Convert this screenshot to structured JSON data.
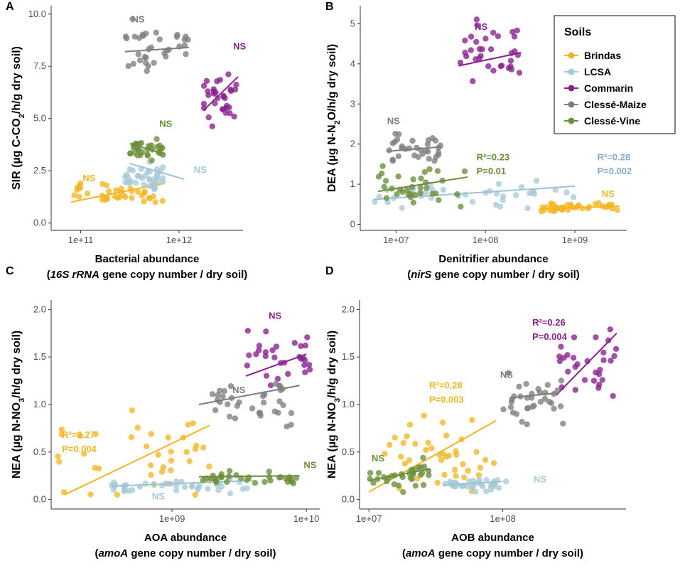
{
  "colors": {
    "Brindas": "#f3b622",
    "LCSA": "#a6cbd8",
    "Commarin": "#8b1f8f",
    "Clessé-Maize": "#7d7d7d",
    "Clessé-Vine": "#6b8e3a",
    "annot_LCSA": "#88aec6"
  },
  "legend": {
    "title": "Soils",
    "items": [
      "Brindas",
      "LCSA",
      "Commarin",
      "Clessé-Maize",
      "Clessé-Vine"
    ]
  },
  "chart_data": [
    {
      "panel": "A",
      "type": "scatter",
      "ylabel": "SIR (µg C-CO₂/h/g dry soil)",
      "xlabel": "Bacterial abundance",
      "xlabel_sub": [
        "(",
        "16S rRNA",
        " gene copy number / dry soil)"
      ],
      "x_scale": "log10",
      "xlim": [
        10.7,
        12.65
      ],
      "ylim": [
        -0.35,
        10.4
      ],
      "xticks": [
        {
          "v": 11,
          "label": "1e+11"
        },
        {
          "v": 12,
          "label": "1e+12"
        }
      ],
      "yticks": [
        {
          "v": 0,
          "label": "0.0"
        },
        {
          "v": 2.5,
          "label": "2.5"
        },
        {
          "v": 5,
          "label": "5.0"
        },
        {
          "v": 7.5,
          "label": "7.5"
        },
        {
          "v": 10,
          "label": "10.0"
        }
      ],
      "series": [
        {
          "name": "Brindas",
          "x0": 10.9,
          "x1": 11.85,
          "y0": 1.0,
          "y1": 1.9,
          "yc": 1.4,
          "ys": 0.45,
          "n": 40,
          "fit": [
            [
              10.9,
              1.0
            ],
            [
              11.85,
              1.9
            ]
          ],
          "seed": 11
        },
        {
          "name": "LCSA",
          "x0": 11.45,
          "x1": 11.85,
          "y0": 1.2,
          "y1": 3.3,
          "yc": 2.2,
          "ys": 0.55,
          "n": 38,
          "fit": [
            [
              11.5,
              2.85
            ],
            [
              12.05,
              2.1
            ]
          ],
          "seed": 12
        },
        {
          "name": "Commarin",
          "x0": 12.25,
          "x1": 12.6,
          "y0": 3.5,
          "y1": 7.8,
          "yc": 6.0,
          "ys": 1.0,
          "n": 32,
          "fit": [
            [
              12.25,
              5.4
            ],
            [
              12.6,
              7.0
            ]
          ],
          "seed": 13
        },
        {
          "name": "Clessé-Maize",
          "x0": 11.45,
          "x1": 12.1,
          "y0": 6.2,
          "y1": 10.2,
          "yc": 8.4,
          "ys": 1.1,
          "n": 34,
          "fit": [
            [
              11.45,
              8.2
            ],
            [
              12.1,
              8.4
            ]
          ],
          "seed": 14
        },
        {
          "name": "Clessé-Vine",
          "x0": 11.5,
          "x1": 11.85,
          "y0": 2.8,
          "y1": 4.3,
          "yc": 3.5,
          "ys": 0.4,
          "n": 30,
          "fit": [
            [
              11.5,
              3.8
            ],
            [
              11.85,
              3.3
            ]
          ],
          "seed": 15
        }
      ],
      "annotations": [
        {
          "text": "NS",
          "series": "Clessé-Maize",
          "x": 11.52,
          "y": 9.6
        },
        {
          "text": "NS",
          "series": "Commarin",
          "x": 12.55,
          "y": 8.3
        },
        {
          "text": "NS",
          "series": "Clessé-Vine",
          "x": 11.8,
          "y": 4.6
        },
        {
          "text": "NS",
          "series": "Brindas",
          "x": 11.02,
          "y": 2.0
        },
        {
          "text": "NS",
          "series": "LCSA",
          "x": 12.15,
          "y": 2.4
        }
      ]
    },
    {
      "panel": "B",
      "type": "scatter",
      "ylabel": "DEA (µg N-N₂O/h/g dry soil)",
      "xlabel": "Denitrifier abundance",
      "xlabel_sub": [
        "(",
        "nirS",
        " gene copy number / dry soil)"
      ],
      "x_scale": "log10",
      "xlim": [
        6.6,
        9.58
      ],
      "ylim": [
        -0.15,
        5.45
      ],
      "xticks": [
        {
          "v": 7,
          "label": "1e+07"
        },
        {
          "v": 8,
          "label": "1e+08"
        },
        {
          "v": 9,
          "label": "1e+09"
        }
      ],
      "yticks": [
        {
          "v": 0,
          "label": "0"
        },
        {
          "v": 1,
          "label": "1"
        },
        {
          "v": 2,
          "label": "2"
        },
        {
          "v": 3,
          "label": "3"
        },
        {
          "v": 4,
          "label": "4"
        },
        {
          "v": 5,
          "label": "5"
        }
      ],
      "series": [
        {
          "name": "Brindas",
          "x0": 8.6,
          "x1": 9.5,
          "y0": 0.3,
          "y1": 0.6,
          "yc": 0.42,
          "ys": 0.08,
          "n": 40,
          "fit": [
            [
              8.6,
              0.38
            ],
            [
              9.5,
              0.45
            ]
          ],
          "seed": 21
        },
        {
          "name": "LCSA",
          "x0": 6.75,
          "x1": 9.0,
          "y0": 0.4,
          "y1": 1.3,
          "yc": 0.75,
          "ys": 0.25,
          "n": 38,
          "fit": [
            [
              6.75,
              0.62
            ],
            [
              9.0,
              0.95
            ]
          ],
          "seed": 22
        },
        {
          "name": "Commarin",
          "x0": 7.7,
          "x1": 8.4,
          "y0": 2.5,
          "y1": 5.3,
          "yc": 4.2,
          "ys": 0.9,
          "n": 34,
          "fit": [
            [
              7.7,
              3.95
            ],
            [
              8.4,
              4.28
            ]
          ],
          "seed": 23
        },
        {
          "name": "Clessé-Maize",
          "x0": 6.9,
          "x1": 7.5,
          "y0": 1.4,
          "y1": 2.6,
          "yc": 1.9,
          "ys": 0.3,
          "n": 32,
          "fit": [
            [
              6.9,
              1.82
            ],
            [
              7.5,
              1.93
            ]
          ],
          "seed": 24
        },
        {
          "name": "Clessé-Vine",
          "x0": 6.8,
          "x1": 7.8,
          "y0": 0.2,
          "y1": 1.6,
          "yc": 0.95,
          "ys": 0.35,
          "n": 34,
          "fit": [
            [
              6.8,
              0.82
            ],
            [
              7.8,
              1.18
            ]
          ],
          "seed": 25
        }
      ],
      "annotations": [
        {
          "text": "NS",
          "series": "Commarin",
          "x": 7.88,
          "y": 4.85
        },
        {
          "text": "NS",
          "series": "Clessé-Maize",
          "x": 6.9,
          "y": 2.5
        },
        {
          "text": "R²=0.23",
          "series": "Clessé-Vine",
          "x": 7.9,
          "y": 1.6
        },
        {
          "text": "P=0.01",
          "series": "Clessé-Vine",
          "x": 7.9,
          "y": 1.25
        },
        {
          "text": "R²=0.28",
          "series": "annot_LCSA",
          "x": 9.25,
          "y": 1.6
        },
        {
          "text": "P=0.002",
          "series": "annot_LCSA",
          "x": 9.25,
          "y": 1.25
        },
        {
          "text": "NS",
          "series": "Brindas",
          "x": 9.3,
          "y": 0.68
        }
      ]
    },
    {
      "panel": "C",
      "type": "scatter",
      "ylabel": "NEA (µg N-NO₃/h/g dry soil)",
      "xlabel": "AOA abundance",
      "xlabel_sub": [
        "(",
        "amoA",
        " gene copy number / dry soil)"
      ],
      "x_scale": "log10",
      "xlim": [
        8.1,
        10.1
      ],
      "ylim": [
        -0.1,
        2.1
      ],
      "xticks": [
        {
          "v": 9,
          "label": "1e+09"
        },
        {
          "v": 10,
          "label": "1e+10"
        }
      ],
      "yticks": [
        {
          "v": 0,
          "label": "0.0"
        },
        {
          "v": 0.5,
          "label": "0.5"
        },
        {
          "v": 1,
          "label": "1.0"
        },
        {
          "v": 1.5,
          "label": "1.5"
        },
        {
          "v": 2,
          "label": "2.0"
        }
      ],
      "series": [
        {
          "name": "Brindas",
          "x0": 8.15,
          "x1": 9.3,
          "y0": 0.05,
          "y1": 1.6,
          "yc": 0.45,
          "ys": 0.35,
          "n": 40,
          "fit": [
            [
              8.2,
              0.05
            ],
            [
              9.28,
              0.78
            ]
          ],
          "seed": 31
        },
        {
          "name": "LCSA",
          "x0": 8.55,
          "x1": 9.6,
          "y0": 0.05,
          "y1": 0.3,
          "yc": 0.15,
          "ys": 0.06,
          "n": 38,
          "fit": [
            [
              8.55,
              0.14
            ],
            [
              9.6,
              0.2
            ]
          ],
          "seed": 32
        },
        {
          "name": "Commarin",
          "x0": 9.55,
          "x1": 10.05,
          "y0": 1.0,
          "y1": 2.0,
          "yc": 1.5,
          "ys": 0.25,
          "n": 30,
          "fit": [
            [
              9.55,
              1.3
            ],
            [
              10.0,
              1.53
            ]
          ],
          "seed": 33
        },
        {
          "name": "Clessé-Maize",
          "x0": 9.3,
          "x1": 9.9,
          "y0": 0.6,
          "y1": 1.5,
          "yc": 1.05,
          "ys": 0.22,
          "n": 34,
          "fit": [
            [
              9.2,
              1.0
            ],
            [
              9.95,
              1.2
            ]
          ],
          "seed": 34
        },
        {
          "name": "Clessé-Vine",
          "x0": 9.2,
          "x1": 9.95,
          "y0": 0.1,
          "y1": 0.35,
          "yc": 0.22,
          "ys": 0.06,
          "n": 32,
          "fit": [
            [
              9.2,
              0.24
            ],
            [
              9.95,
              0.25
            ]
          ],
          "seed": 35
        }
      ],
      "annotations": [
        {
          "text": "NS",
          "series": "Commarin",
          "x": 9.72,
          "y": 1.9
        },
        {
          "text": "NS",
          "series": "Clessé-Maize",
          "x": 9.45,
          "y": 1.12
        },
        {
          "text": "R²=0.27",
          "series": "Brindas",
          "x": 8.18,
          "y": 0.65
        },
        {
          "text": "P=0.004",
          "series": "Brindas",
          "x": 8.18,
          "y": 0.5
        },
        {
          "text": "NS",
          "series": "Clessé-Vine",
          "x": 9.98,
          "y": 0.33
        },
        {
          "text": "NS",
          "series": "LCSA",
          "x": 8.85,
          "y": 0.0
        }
      ]
    },
    {
      "panel": "D",
      "type": "scatter",
      "ylabel": "NEA (µg N-NO₃/h/g dry soil)",
      "xlabel": "AOB abundance",
      "xlabel_sub": [
        "(",
        "amoA",
        " gene copy number / dry soil)"
      ],
      "x_scale": "log10",
      "xlim": [
        6.93,
        8.92
      ],
      "ylim": [
        -0.1,
        2.1
      ],
      "xticks": [
        {
          "v": 7,
          "label": "1e+07"
        },
        {
          "v": 8,
          "label": "1e+08"
        }
      ],
      "yticks": [
        {
          "v": 0,
          "label": "0.0"
        },
        {
          "v": 0.5,
          "label": "0.5"
        },
        {
          "v": 1,
          "label": "1.0"
        },
        {
          "v": 1.5,
          "label": "1.5"
        },
        {
          "v": 2,
          "label": "2.0"
        }
      ],
      "series": [
        {
          "name": "Brindas",
          "x0": 7.05,
          "x1": 7.95,
          "y0": 0.05,
          "y1": 1.6,
          "yc": 0.45,
          "ys": 0.35,
          "n": 40,
          "fit": [
            [
              7.0,
              0.08
            ],
            [
              7.95,
              0.83
            ]
          ],
          "seed": 41
        },
        {
          "name": "LCSA",
          "x0": 7.55,
          "x1": 8.05,
          "y0": 0.05,
          "y1": 0.3,
          "yc": 0.15,
          "ys": 0.06,
          "n": 38,
          "fit": [
            [
              7.55,
              0.15
            ],
            [
              8.0,
              0.19
            ]
          ],
          "seed": 42
        },
        {
          "name": "Commarin",
          "x0": 8.4,
          "x1": 8.85,
          "y0": 0.8,
          "y1": 2.0,
          "yc": 1.45,
          "ys": 0.3,
          "n": 30,
          "fit": [
            [
              8.4,
              1.1
            ],
            [
              8.85,
              1.75
            ]
          ],
          "seed": 43
        },
        {
          "name": "Clessé-Maize",
          "x0": 8.0,
          "x1": 8.45,
          "y0": 0.6,
          "y1": 1.5,
          "yc": 1.05,
          "ys": 0.22,
          "n": 34,
          "fit": [
            [
              8.05,
              1.07
            ],
            [
              8.4,
              1.12
            ]
          ],
          "seed": 44
        },
        {
          "name": "Clessé-Vine",
          "x0": 6.98,
          "x1": 7.45,
          "y0": 0.05,
          "y1": 0.85,
          "yc": 0.25,
          "ys": 0.15,
          "n": 32,
          "fit": [
            [
              7.0,
              0.2
            ],
            [
              7.45,
              0.32
            ]
          ],
          "seed": 45
        }
      ],
      "annotations": [
        {
          "text": "R²=0.26",
          "series": "Commarin",
          "x": 8.22,
          "y": 1.83
        },
        {
          "text": "P=0.004",
          "series": "Commarin",
          "x": 8.22,
          "y": 1.68
        },
        {
          "text": "NS",
          "series": "Clessé-Maize",
          "x": 7.98,
          "y": 1.28
        },
        {
          "text": "R²=0.28",
          "series": "Brindas",
          "x": 7.45,
          "y": 1.17
        },
        {
          "text": "P=0.003",
          "series": "Brindas",
          "x": 7.45,
          "y": 1.02
        },
        {
          "text": "NS",
          "series": "Clessé-Vine",
          "x": 7.02,
          "y": 0.4
        },
        {
          "text": "NS",
          "series": "LCSA",
          "x": 8.23,
          "y": 0.18
        }
      ]
    }
  ]
}
